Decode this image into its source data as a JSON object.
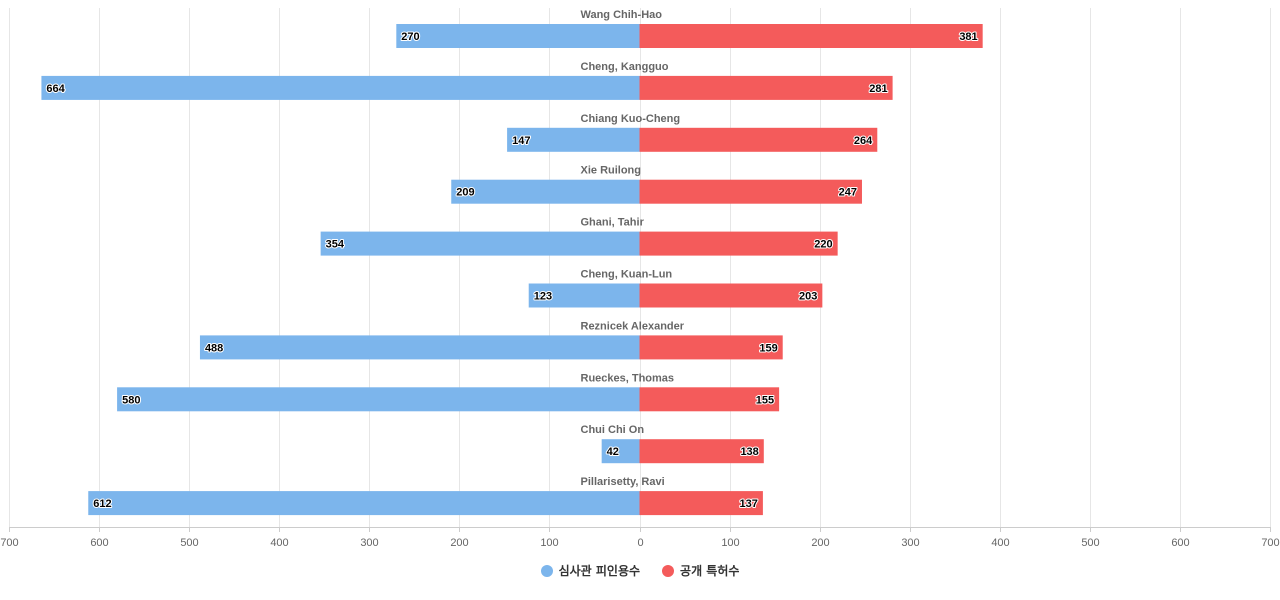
{
  "chart_data": {
    "type": "bar",
    "orientation": "horizontal",
    "layout": "diverging",
    "categories": [
      "Wang Chih-Hao",
      "Cheng, Kangguo",
      "Chiang Kuo-Cheng",
      "Xie Ruilong",
      "Ghani, Tahir",
      "Cheng, Kuan-Lun",
      "Reznicek Alexander",
      "Rueckes, Thomas",
      "Chui Chi On",
      "Pillarisetty, Ravi"
    ],
    "series": [
      {
        "name": "심사관 피인용수",
        "side": "left",
        "color": "#7cb5ec",
        "values": [
          270,
          664,
          147,
          209,
          354,
          123,
          488,
          580,
          42,
          612
        ]
      },
      {
        "name": "공개 특허수",
        "side": "right",
        "color": "#f45b5b",
        "values": [
          381,
          281,
          264,
          247,
          220,
          203,
          159,
          155,
          138,
          137
        ]
      }
    ],
    "xlim": [
      -700,
      700
    ],
    "x_ticks": [
      -700,
      -600,
      -500,
      -400,
      -300,
      -200,
      -100,
      0,
      100,
      200,
      300,
      400,
      500,
      600,
      700
    ],
    "x_tick_labels": [
      "700",
      "600",
      "500",
      "400",
      "300",
      "200",
      "100",
      "0",
      "100",
      "200",
      "300",
      "400",
      "500",
      "600",
      "700"
    ],
    "grid": true,
    "legend_position": "bottom-center",
    "data_labels": true
  }
}
